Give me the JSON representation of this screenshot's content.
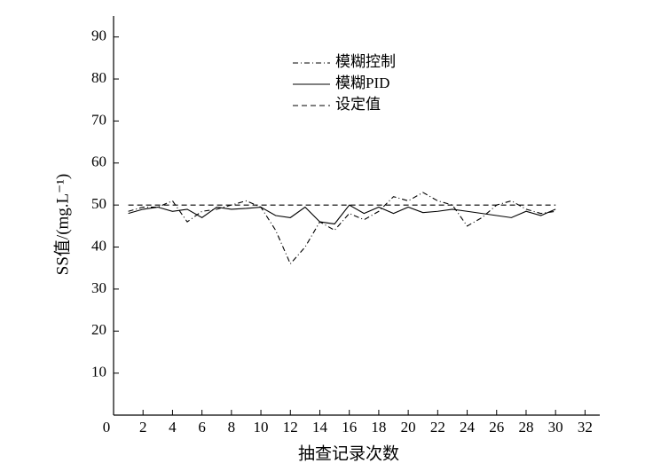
{
  "chart_data": {
    "type": "line",
    "x_label": "抽查记录次数",
    "y_label": "SS值/(mg.L⁻¹)",
    "x": [
      1,
      2,
      3,
      4,
      5,
      6,
      7,
      8,
      9,
      10,
      11,
      12,
      13,
      14,
      15,
      16,
      17,
      18,
      19,
      20,
      21,
      22,
      23,
      24,
      25,
      26,
      27,
      28,
      29,
      30
    ],
    "series": [
      {
        "name": "模糊控制",
        "color": "#000000",
        "dash": "6,3,1,3",
        "values": [
          48.5,
          49.5,
          49.5,
          51,
          46,
          48.5,
          49,
          50,
          51,
          49.5,
          44,
          36,
          40,
          46,
          44,
          48,
          46.5,
          48.5,
          52,
          51,
          53,
          51,
          50,
          45,
          47,
          50,
          51,
          49,
          48,
          48.5
        ]
      },
      {
        "name": "模糊PID",
        "color": "#000000",
        "dash": "none",
        "values": [
          48,
          49,
          49.5,
          48.5,
          49,
          47,
          49.5,
          49,
          49.2,
          49.5,
          47.5,
          47,
          49.5,
          46,
          45.5,
          50,
          48,
          49.5,
          48,
          49.5,
          48.2,
          48.5,
          49,
          48.5,
          48,
          47.5,
          47,
          48.5,
          47.5,
          49
        ]
      },
      {
        "name": "设定值",
        "color": "#000000",
        "dash": "6,4",
        "values": [
          50,
          50,
          50,
          50,
          50,
          50,
          50,
          50,
          50,
          50,
          50,
          50,
          50,
          50,
          50,
          50,
          50,
          50,
          50,
          50,
          50,
          50,
          50,
          50,
          50,
          50,
          50,
          50,
          50,
          50
        ]
      }
    ],
    "xlim": [
      0,
      33
    ],
    "xticks": [
      0,
      2,
      4,
      6,
      8,
      10,
      12,
      14,
      16,
      18,
      20,
      22,
      24,
      26,
      28,
      30,
      32
    ],
    "ylim": [
      0,
      95
    ],
    "yticks": [
      10,
      20,
      30,
      40,
      50,
      60,
      70,
      80,
      90
    ],
    "legend": "top-center"
  }
}
